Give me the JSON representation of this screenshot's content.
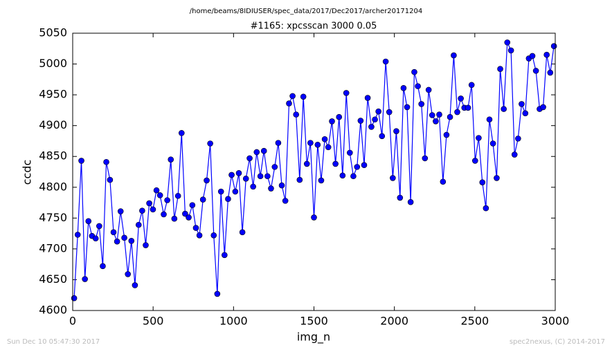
{
  "chart_data": {
    "type": "line",
    "suptitle": "/home/beams/8IDIUSER/spec_data/2017/Dec2017/archer20171204",
    "title": "#1165: xpcsscan 3000 0.05",
    "x_label": "img_n",
    "y_label": "ccdc",
    "footer_left": "Sun Dec 10 05:47:30 2017",
    "footer_right": "spec2nexus, (C) 2014-2017",
    "xlim": [
      0,
      3000
    ],
    "xticks": [
      0,
      500,
      1000,
      1500,
      2000,
      2500,
      3000
    ],
    "ylim": [
      4600,
      5050
    ],
    "yticks": [
      4600,
      4650,
      4700,
      4750,
      4800,
      4850,
      4900,
      4950,
      5000,
      5050
    ],
    "grid": false,
    "x": [
      9,
      31,
      54,
      76,
      98,
      120,
      143,
      165,
      187,
      209,
      232,
      254,
      276,
      298,
      321,
      343,
      365,
      387,
      410,
      432,
      454,
      476,
      499,
      521,
      543,
      566,
      588,
      610,
      632,
      655,
      677,
      699,
      721,
      744,
      766,
      788,
      810,
      833,
      855,
      877,
      899,
      922,
      944,
      966,
      988,
      1011,
      1033,
      1055,
      1077,
      1100,
      1122,
      1144,
      1167,
      1189,
      1211,
      1233,
      1256,
      1278,
      1300,
      1322,
      1345,
      1367,
      1389,
      1411,
      1434,
      1456,
      1478,
      1500,
      1523,
      1545,
      1567,
      1589,
      1612,
      1634,
      1656,
      1678,
      1701,
      1723,
      1745,
      1768,
      1790,
      1812,
      1834,
      1857,
      1879,
      1901,
      1923,
      1946,
      1968,
      1990,
      2012,
      2035,
      2057,
      2079,
      2101,
      2124,
      2146,
      2168,
      2190,
      2213,
      2235,
      2257,
      2279,
      2302,
      2324,
      2346,
      2369,
      2391,
      2413,
      2435,
      2458,
      2480,
      2502,
      2524,
      2547,
      2569,
      2591,
      2613,
      2636,
      2658,
      2680,
      2702,
      2725,
      2747,
      2769,
      2791,
      2814,
      2836,
      2858,
      2880,
      2903,
      2925,
      2947,
      2969,
      2992
    ],
    "series": [
      {
        "name": "ccdc",
        "color": "#0000ff",
        "values": [
          4620,
          4723,
          4843,
          4651,
          4745,
          4721,
          4717,
          4737,
          4672,
          4841,
          4812,
          4727,
          4712,
          4761,
          4718,
          4659,
          4713,
          4641,
          4739,
          4762,
          4706,
          4774,
          4764,
          4795,
          4787,
          4756,
          4779,
          4845,
          4749,
          4786,
          4888,
          4757,
          4751,
          4771,
          4734,
          4722,
          4780,
          4811,
          4871,
          4722,
          4627,
          4793,
          4690,
          4781,
          4820,
          4793,
          4823,
          4727,
          4814,
          4847,
          4801,
          4857,
          4818,
          4859,
          4818,
          4798,
          4833,
          4872,
          4803,
          4778,
          4936,
          4948,
          4918,
          4812,
          4947,
          4838,
          4872,
          4751,
          4869,
          4811,
          4878,
          4865,
          4907,
          4838,
          4914,
          4819,
          4953,
          4856,
          4818,
          4833,
          4908,
          4836,
          4945,
          4898,
          4910,
          4923,
          4883,
          5004,
          4922,
          4815,
          4891,
          4783,
          4961,
          4930,
          4776,
          4987,
          4964,
          4935,
          4847,
          4958,
          4917,
          4907,
          4918,
          4809,
          4885,
          4914,
          5014,
          4922,
          4944,
          4929,
          4929,
          4966,
          4843,
          4880,
          4808,
          4766,
          4910,
          4871,
          4815,
          4992,
          4927,
          5035,
          5022,
          4853,
          4879,
          4935,
          4920,
          5009,
          5013,
          4989,
          4927,
          4930,
          5015,
          4986,
          5029
        ]
      }
    ]
  }
}
